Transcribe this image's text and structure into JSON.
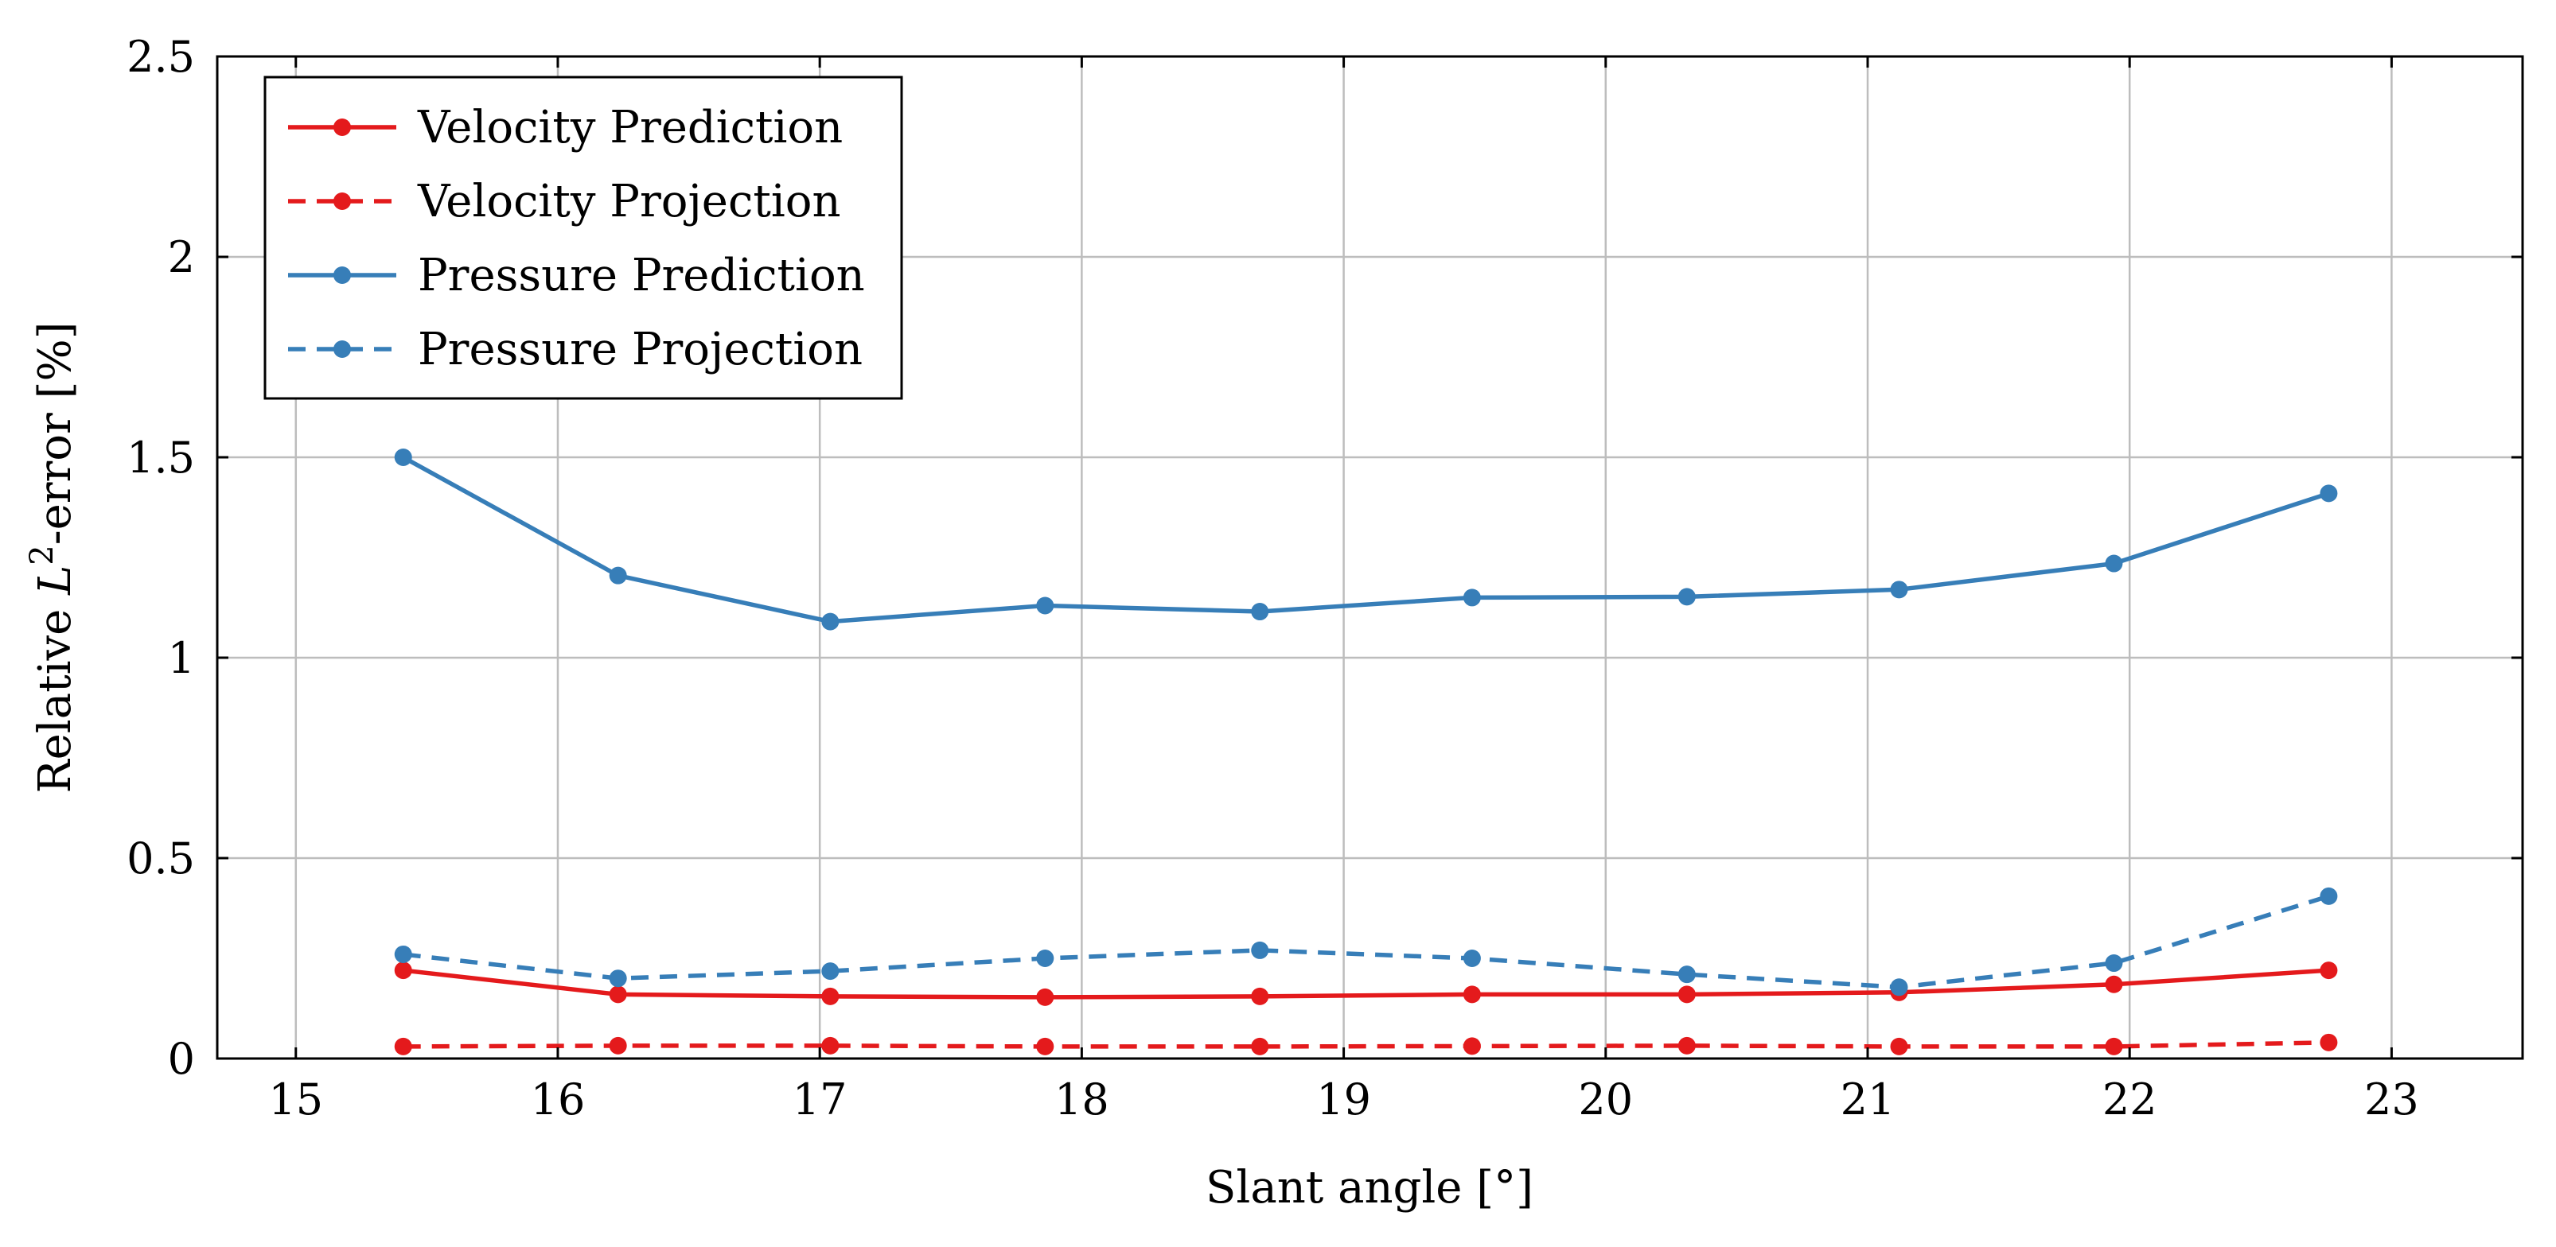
{
  "chart_data": {
    "type": "line",
    "title": "",
    "xlabel": "Slant angle [°]",
    "ylabel": {
      "prefix": "Relative ",
      "var": "L",
      "sup": "2",
      "suffix": "-error [%]"
    },
    "xlim": [
      14.7,
      23.5
    ],
    "ylim": [
      0,
      2.5
    ],
    "xticks": [
      15,
      16,
      17,
      18,
      19,
      20,
      21,
      22,
      23
    ],
    "yticks": [
      {
        "value": 0,
        "label": "0"
      },
      {
        "value": 0.5,
        "label": "0.5"
      },
      {
        "value": 1,
        "label": "1"
      },
      {
        "value": 1.5,
        "label": "1.5"
      },
      {
        "value": 2,
        "label": "2"
      },
      {
        "value": 2.5,
        "label": "2.5"
      }
    ],
    "grid": true,
    "legend_position": "top-left",
    "x": [
      15.41,
      16.23,
      17.04,
      17.86,
      18.68,
      19.49,
      20.31,
      21.12,
      21.94,
      22.76
    ],
    "series": [
      {
        "name": "Velocity Prediction",
        "color": "#e41a1c",
        "dashed": false,
        "values": [
          0.22,
          0.16,
          0.155,
          0.153,
          0.155,
          0.16,
          0.16,
          0.165,
          0.185,
          0.22
        ]
      },
      {
        "name": "Velocity Projection",
        "color": "#e41a1c",
        "dashed": true,
        "values": [
          0.03,
          0.032,
          0.032,
          0.03,
          0.03,
          0.031,
          0.032,
          0.03,
          0.03,
          0.04
        ]
      },
      {
        "name": "Pressure Prediction",
        "color": "#377eb8",
        "dashed": false,
        "values": [
          1.5,
          1.205,
          1.09,
          1.13,
          1.115,
          1.15,
          1.152,
          1.17,
          1.235,
          1.41
        ]
      },
      {
        "name": "Pressure Projection",
        "color": "#377eb8",
        "dashed": true,
        "values": [
          0.26,
          0.2,
          0.218,
          0.25,
          0.27,
          0.25,
          0.21,
          0.178,
          0.238,
          0.405
        ]
      }
    ]
  }
}
